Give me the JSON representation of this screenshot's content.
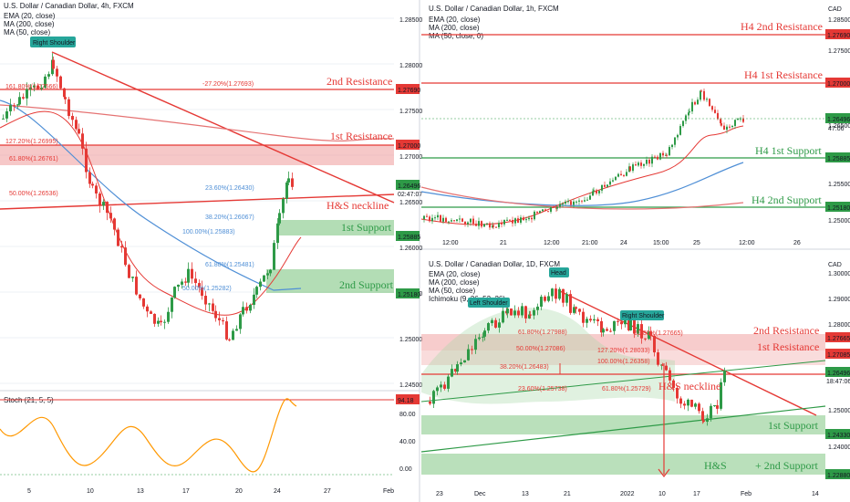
{
  "colors": {
    "red": "#e53935",
    "green": "#2e9a47",
    "teal": "#26a69a",
    "blue": "#4f8fd6",
    "orange": "#ff9800",
    "grid": "#eef0f4"
  },
  "panel_left": {
    "title": "U.S. Dollar / Canadian Dollar, 4h, FXCM",
    "indicators": [
      "EMA (20, close)",
      "MA (200, close)",
      "MA (50, close)"
    ],
    "price_ticks": [
      "1.28500",
      "1.28000",
      "1.27500",
      "1.27000",
      "1.26500",
      "1.26000",
      "1.25500",
      "1.25000",
      "1.24500"
    ],
    "x_ticks": [
      "5",
      "10",
      "13",
      "17",
      "20",
      "24",
      "27",
      "Feb"
    ],
    "levels": {
      "r2": "1.27690",
      "r1": "1.27000",
      "cur": "1.26496",
      "timer": "02:47:07",
      "s1": "1.25885",
      "s2": "1.25180"
    },
    "labels": {
      "r2": "2nd Resistance",
      "r1": "1st Resistance",
      "s1": "1st Support",
      "s2": "2nd Support",
      "neckline": "H&S neckline",
      "shoulder": "Right Shoulder"
    },
    "fibs": [
      "-27.20%(1.27693)",
      "161.80%(1.27566)",
      "127.20%(1.26995)",
      "61.80%(1.26761)",
      "50.00%(1.26536)",
      "23.60%(1.26430)",
      "38.20%(1.26067)",
      "100.00%(1.25883)",
      "61.80%(1.25481)",
      "50.00%(1.25282)"
    ],
    "stoch": {
      "label": "Stoch (21, 5, 5)",
      "value": "94.18",
      "ticks": [
        "80.00",
        "40.00",
        "0.00"
      ]
    }
  },
  "panel_tr": {
    "title": "U.S. Dollar / Canadian Dollar, 1h, FXCM",
    "indicators": [
      "EMA (20, close)",
      "MA (200, close)",
      "MA (50, close, 0)"
    ],
    "price_ticks": [
      "1.28500",
      "1.27500",
      "1.26500",
      "1.25500",
      "1.25000"
    ],
    "x_ticks": [
      "12:00",
      "21",
      "12:00",
      "21:00",
      "24",
      "15:00",
      "25",
      "12:00",
      "26"
    ],
    "levels": {
      "r2": "1.27690",
      "r1": "1.27000",
      "cur": "1.26496",
      "timer": "47:06",
      "s1": "1.25885",
      "s2": "1.25180"
    },
    "labels": {
      "r2": "H4 2nd Resistance",
      "r1": "H4 1st Resistance",
      "s1": "H4 1st Support",
      "s2": "H4 2nd Support"
    },
    "currency": "CAD"
  },
  "panel_br": {
    "title": "U.S. Dollar / Canadian Dollar, 1D, FXCM",
    "indicators": [
      "EMA (20, close)",
      "MA (200, close)",
      "MA (50, close)",
      "Ichimoku (9, 26, 52, 26)"
    ],
    "price_ticks": [
      "1.30000",
      "1.29000",
      "1.28000",
      "1.25000",
      "1.24000"
    ],
    "x_ticks": [
      "23",
      "Dec",
      "13",
      "21",
      "2022",
      "10",
      "17",
      "Feb",
      "14"
    ],
    "levels": {
      "r2": "1.27665",
      "r1": "1.27085",
      "cur": "1.26496",
      "timer": "18:47:06",
      "s1": "1.24330",
      "s2": "1.22880"
    },
    "labels": {
      "r2": "2nd Resistance",
      "r1": "1st Resistance",
      "s1": "1st Support",
      "s2": "H&S",
      "s2b": "+ 2nd Support",
      "neckline": "H&S neckline",
      "head": "Head",
      "ls": "Left Shoulder",
      "rs": "Right Shoulder"
    },
    "fibs": [
      "61.80%(1.27988)",
      "50.00%(1.27086)",
      "38.20%(1.26483)",
      "23.60%(1.25738)",
      "61.80%(1.27665)",
      "100.00%(1.26358)",
      "61.80%(1.25729)",
      "127.20%(1.28033)"
    ],
    "currency": "CAD"
  },
  "currency": "CAD"
}
